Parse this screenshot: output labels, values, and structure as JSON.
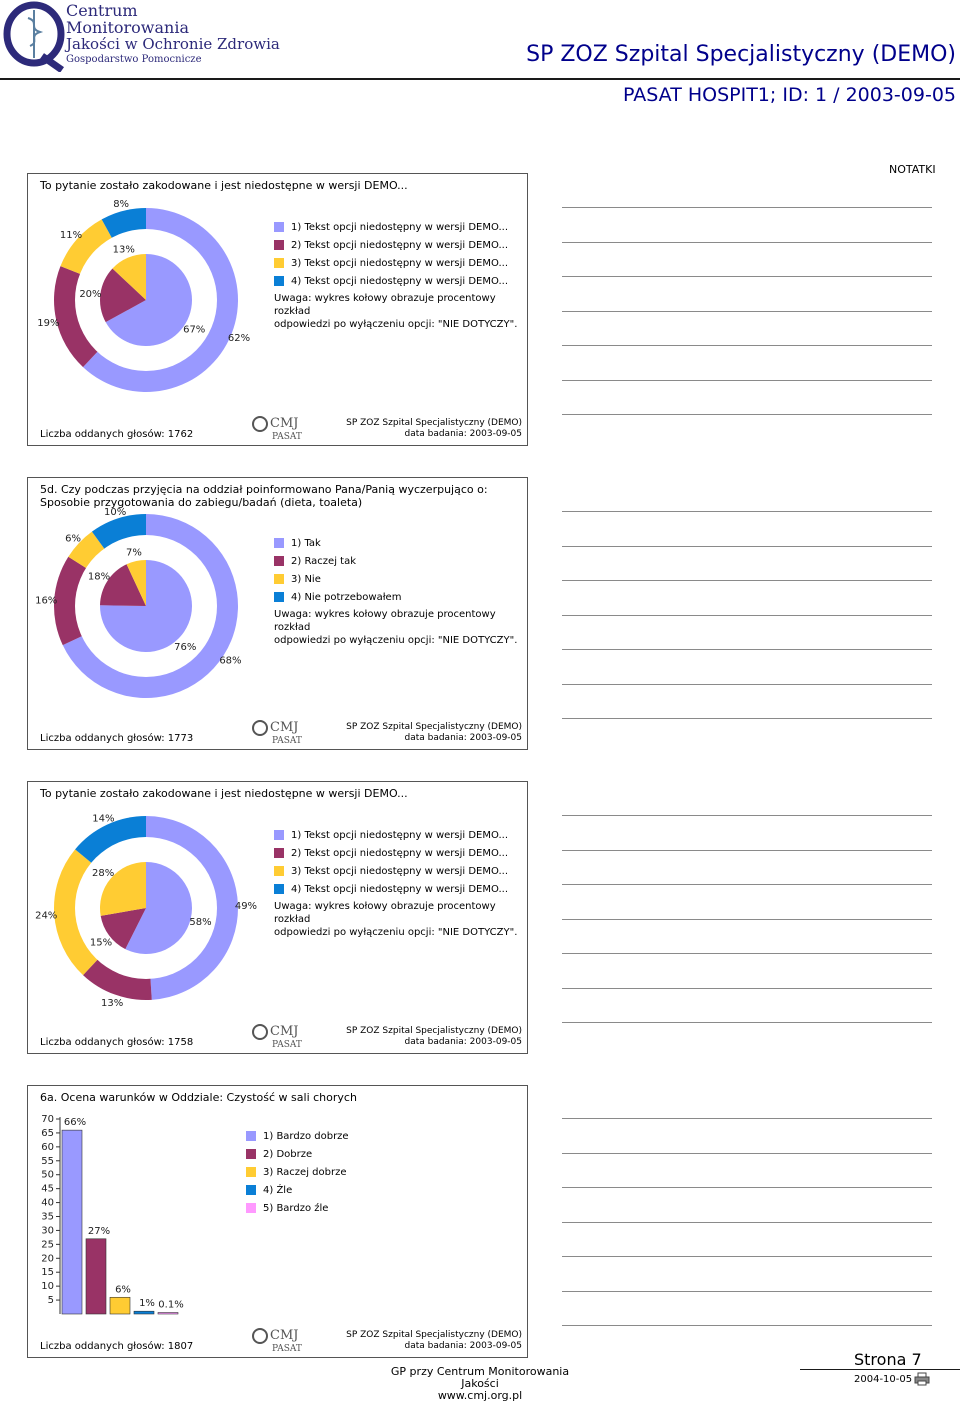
{
  "header": {
    "logo_lines": [
      "Centrum",
      "Monitorowania",
      "Jakości w Ochronie Zdrowia",
      "Gospodarstwo Pomocnicze"
    ],
    "title": "SP ZOZ Szpital Specjalistyczny (DEMO)",
    "subtitle": "PASAT HOSPIT1; ID: 1  / 2003-09-05"
  },
  "notes": {
    "title": "NOTATKI"
  },
  "panel_footer": {
    "org": "SP ZOZ Szpital Specjalistyczny (DEMO)",
    "date": "data badania: 2003-09-05",
    "logo": "CMJ",
    "logo_sub": "PASAT"
  },
  "colors": {
    "c1": "#9999ff",
    "c2": "#993366",
    "c3": "#ffcc33",
    "c4": "#0a7fd6",
    "c5": "#ff99ff"
  },
  "charts": [
    {
      "title": "To pytanie zostało zakodowane i jest niedostępne w wersji DEMO...",
      "count": "Liczba oddanych głosów: 1762",
      "legend": [
        "1) Tekst opcji niedostępny w wersji DEMO...",
        "2) Tekst opcji niedostępny w wersji DEMO...",
        "3) Tekst opcji niedostępny w wersji DEMO...",
        "4) Tekst opcji niedostępny w wersji DEMO..."
      ],
      "note": [
        "Uwaga: wykres kołowy obrazuje procentowy rozkład",
        "odpowiedzi po wyłączeniu opcji: \"NIE DOTYCZY\"."
      ],
      "outer": [
        62,
        19,
        11,
        8
      ],
      "inner": [
        67,
        20,
        13,
        0
      ],
      "outer_labels": [
        "62%",
        "19%",
        "11%",
        "8%"
      ],
      "inner_labels": [
        "67%",
        "20%",
        "13%"
      ]
    },
    {
      "title": "5d. Czy podczas przyjęcia na oddział poinformowano Pana/Panią wyczerpująco o:",
      "title2": "Sposobie przygotowania do zabiegu/badań (dieta, toaleta)",
      "count": "Liczba oddanych głosów: 1773",
      "legend": [
        "1) Tak",
        "2) Raczej tak",
        "3) Nie",
        "4) Nie potrzebowałem"
      ],
      "note": [
        "Uwaga: wykres kołowy obrazuje procentowy rozkład",
        "odpowiedzi po wyłączeniu opcji: \"NIE DOTYCZY\"."
      ],
      "outer": [
        68,
        16,
        6,
        10
      ],
      "inner": [
        76,
        18,
        7,
        0
      ],
      "outer_labels": [
        "68%",
        "16%",
        "6%",
        "10%"
      ],
      "inner_labels": [
        "76%",
        "18%",
        "7%"
      ]
    },
    {
      "title": "To pytanie zostało zakodowane i jest niedostępne w wersji DEMO...",
      "count": "Liczba oddanych głosów: 1758",
      "legend": [
        "1) Tekst opcji niedostępny w wersji DEMO...",
        "2) Tekst opcji niedostępny w wersji DEMO...",
        "3) Tekst opcji niedostępny w wersji DEMO...",
        "4) Tekst opcji niedostępny w wersji DEMO..."
      ],
      "note": [
        "Uwaga: wykres kołowy obrazuje procentowy rozkład",
        "odpowiedzi po wyłączeniu opcji: \"NIE DOTYCZY\"."
      ],
      "outer": [
        49,
        13,
        24,
        14
      ],
      "inner": [
        58,
        15,
        28,
        0
      ],
      "outer_labels": [
        "49%",
        "13%",
        "24%",
        "14%"
      ],
      "inner_labels": [
        "58%",
        "15%",
        "28%"
      ]
    }
  ],
  "bar_panel": {
    "title": "6a. Ocena warunków w Oddziale: Czystość w sali chorych",
    "count": "Liczba oddanych głosów: 1807",
    "legend": [
      "1) Bardzo dobrze",
      "2) Dobrze",
      "3) Raczej dobrze",
      "4) Źle",
      "5) Bardzo źle"
    ]
  },
  "chart_data": {
    "type": "bar",
    "title": "6a. Ocena warunków w Oddziale: Czystość w sali chorych",
    "categories": [
      "1) Bardzo dobrze",
      "2) Dobrze",
      "3) Raczej dobrze",
      "4) Źle",
      "5) Bardzo źle"
    ],
    "values": [
      66,
      27,
      6,
      1,
      0.1
    ],
    "value_labels": [
      "66%",
      "27%",
      "6%",
      "1%",
      "0.1%"
    ],
    "yticks": [
      70,
      65,
      60,
      55,
      50,
      45,
      40,
      35,
      30,
      25,
      20,
      15,
      10,
      5
    ],
    "ylim": [
      0,
      70
    ],
    "grid": false,
    "legend_position": "right"
  },
  "footer": {
    "center_line1": "GP przy Centrum Monitorowania Jakości",
    "center_line2": "www.cmj.org.pl",
    "page": "Strona 7",
    "date": "2004-10-05"
  }
}
